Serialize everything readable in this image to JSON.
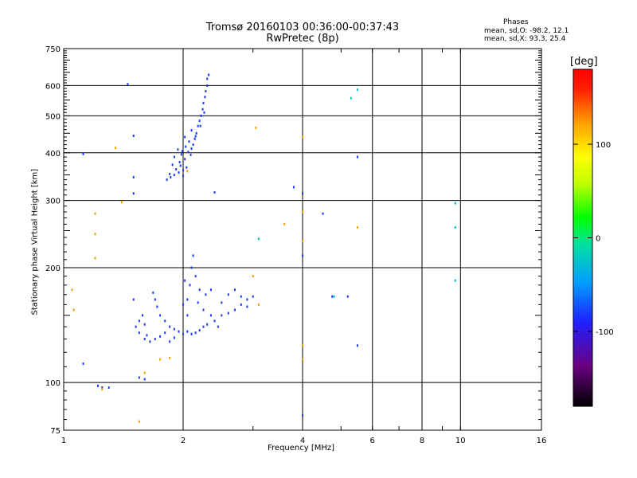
{
  "chart_data": {
    "type": "scatter",
    "title": "Tromsø 20160103 00:36:00-00:37:43",
    "subtitle": "RwPretec (8p)",
    "xlabel": "Frequency [MHz]",
    "ylabel": "Stationary phase Virtual Height [km]",
    "x_scale": "log",
    "y_scale": "log",
    "xlim": [
      1,
      16
    ],
    "ylim": [
      75,
      750
    ],
    "x_ticks": [
      1,
      2,
      4,
      6,
      8,
      10,
      16
    ],
    "x_tick_labels": [
      "1",
      "2",
      "4",
      "6",
      "8",
      "10",
      "16"
    ],
    "y_ticks": [
      75,
      100,
      200,
      300,
      400,
      500,
      600,
      750
    ],
    "y_tick_labels": [
      "75",
      "100",
      "200",
      "300",
      "400",
      "500",
      "600",
      "750"
    ],
    "grid": true,
    "color_axis": {
      "label": "[deg]",
      "range": [
        -180,
        180
      ],
      "ticks": [
        -100,
        0,
        100
      ],
      "tick_labels": [
        "-100",
        "0",
        "100"
      ]
    },
    "stats_header": "Phases",
    "stats": [
      "mean, sd,O: -98.2, 12.1",
      "mean, sd,X:  93.3, 25.4"
    ],
    "series": [
      {
        "mode": "O",
        "color": "#1a3cf0",
        "points": [
          [
            1.82,
            340
          ],
          [
            1.86,
            345
          ],
          [
            1.9,
            350
          ],
          [
            1.95,
            355
          ],
          [
            2.0,
            360
          ],
          [
            1.85,
            352
          ],
          [
            1.92,
            362
          ],
          [
            2.04,
            366
          ],
          [
            1.88,
            372
          ],
          [
            1.96,
            378
          ],
          [
            2.02,
            385
          ],
          [
            1.9,
            390
          ],
          [
            1.98,
            396
          ],
          [
            2.06,
            402
          ],
          [
            2.1,
            410
          ],
          [
            1.94,
            408
          ],
          [
            2.03,
            415
          ],
          [
            2.12,
            420
          ],
          [
            2.07,
            428
          ],
          [
            2.14,
            435
          ],
          [
            2.02,
            440
          ],
          [
            2.16,
            450
          ],
          [
            2.1,
            458
          ],
          [
            2.18,
            470
          ],
          [
            2.2,
            485
          ],
          [
            2.22,
            500
          ],
          [
            2.24,
            520
          ],
          [
            2.25,
            540
          ],
          [
            2.27,
            560
          ],
          [
            2.28,
            580
          ],
          [
            2.3,
            600
          ],
          [
            2.3,
            625
          ],
          [
            2.32,
            640
          ],
          [
            2.26,
            510
          ],
          [
            2.21,
            470
          ],
          [
            2.15,
            442
          ],
          [
            1.99,
            404
          ],
          [
            2.09,
            395
          ],
          [
            2.0,
            348
          ],
          [
            1.97,
            370
          ],
          [
            1.55,
            135
          ],
          [
            1.6,
            130
          ],
          [
            1.65,
            128
          ],
          [
            1.7,
            130
          ],
          [
            1.75,
            132
          ],
          [
            1.8,
            135
          ],
          [
            1.85,
            140
          ],
          [
            1.9,
            138
          ],
          [
            1.95,
            136
          ],
          [
            2.0,
            134
          ],
          [
            2.05,
            136
          ],
          [
            2.1,
            134
          ],
          [
            2.15,
            135
          ],
          [
            2.2,
            137
          ],
          [
            2.25,
            140
          ],
          [
            2.3,
            142
          ],
          [
            2.4,
            145
          ],
          [
            2.5,
            150
          ],
          [
            2.6,
            152
          ],
          [
            2.7,
            155
          ],
          [
            2.8,
            160
          ],
          [
            2.9,
            165
          ],
          [
            3.0,
            168
          ],
          [
            2.05,
            150
          ],
          [
            2.05,
            165
          ],
          [
            2.08,
            180
          ],
          [
            2.1,
            200
          ],
          [
            2.12,
            215
          ],
          [
            2.15,
            190
          ],
          [
            2.2,
            175
          ],
          [
            2.0,
            160
          ],
          [
            2.02,
            185
          ],
          [
            1.55,
            145
          ],
          [
            1.58,
            150
          ],
          [
            1.6,
            142
          ],
          [
            1.7,
            165
          ],
          [
            1.72,
            158
          ],
          [
            1.75,
            150
          ],
          [
            1.68,
            172
          ],
          [
            1.8,
            145
          ],
          [
            2.6,
            170
          ],
          [
            2.7,
            175
          ],
          [
            2.8,
            168
          ],
          [
            2.9,
            158
          ],
          [
            2.5,
            162
          ],
          [
            2.35,
            150
          ],
          [
            2.45,
            140
          ],
          [
            2.25,
            155
          ],
          [
            1.5,
            165
          ],
          [
            1.52,
            140
          ],
          [
            1.62,
            133
          ],
          [
            1.85,
            128
          ],
          [
            1.9,
            131
          ],
          [
            2.18,
            162
          ],
          [
            2.28,
            170
          ],
          [
            2.35,
            175
          ],
          [
            1.45,
            605
          ],
          [
            1.5,
            443
          ],
          [
            1.5,
            345
          ],
          [
            1.5,
            313
          ],
          [
            1.12,
            397
          ],
          [
            1.12,
            112
          ],
          [
            1.55,
            103
          ],
          [
            1.6,
            102
          ],
          [
            1.22,
            98
          ],
          [
            1.25,
            97
          ],
          [
            1.3,
            97
          ],
          [
            2.4,
            315
          ],
          [
            3.8,
            325
          ],
          [
            4.0,
            313
          ],
          [
            4.5,
            277
          ],
          [
            4.75,
            168
          ],
          [
            5.2,
            168
          ],
          [
            4.0,
            82
          ],
          [
            5.5,
            390
          ],
          [
            5.5,
            125
          ],
          [
            4.0,
            215
          ]
        ]
      },
      {
        "mode": "X",
        "color": "#f0a000",
        "points": [
          [
            1.05,
            175
          ],
          [
            1.06,
            155
          ],
          [
            1.2,
            277
          ],
          [
            1.2,
            245
          ],
          [
            1.2,
            212
          ],
          [
            1.35,
            412
          ],
          [
            1.4,
            297
          ],
          [
            1.25,
            96
          ],
          [
            1.6,
            106
          ],
          [
            1.55,
            79
          ],
          [
            1.75,
            115
          ],
          [
            1.85,
            116
          ],
          [
            2.05,
            358
          ],
          [
            3.05,
            465
          ],
          [
            3.1,
            160
          ],
          [
            3.6,
            260
          ],
          [
            4.0,
            440
          ],
          [
            4.0,
            280
          ],
          [
            4.0,
            235
          ],
          [
            4.0,
            125
          ],
          [
            4.0,
            115
          ],
          [
            5.5,
            255
          ],
          [
            3.0,
            190
          ]
        ]
      },
      {
        "mode": "other",
        "color": "#00c0c0",
        "points": [
          [
            5.3,
            556
          ],
          [
            5.5,
            585
          ],
          [
            9.7,
            295
          ],
          [
            9.7,
            255
          ],
          [
            9.7,
            185
          ],
          [
            3.1,
            238
          ],
          [
            4.8,
            168
          ]
        ]
      }
    ]
  }
}
